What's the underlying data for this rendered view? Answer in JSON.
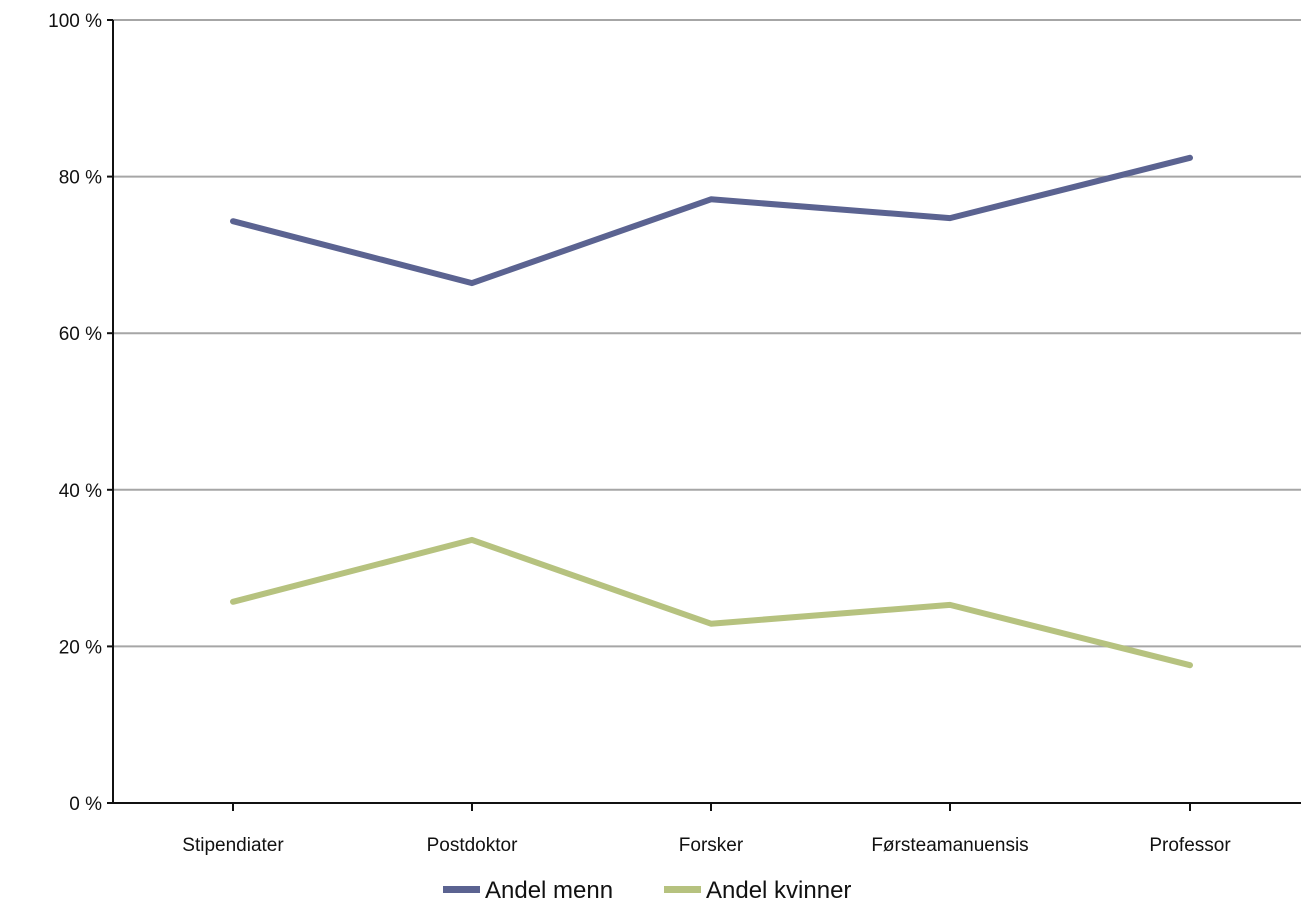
{
  "chart_data": {
    "type": "line",
    "categories": [
      "Stipendiater",
      "Postdoktor",
      "Forsker",
      "Førsteamanuensis",
      "Professor"
    ],
    "series": [
      {
        "name": "Andel menn",
        "values": [
          74.3,
          66.4,
          77.1,
          74.7,
          82.4
        ],
        "color": "#5b6391"
      },
      {
        "name": "Andel kvinner",
        "values": [
          25.7,
          33.6,
          22.9,
          25.3,
          17.6
        ],
        "color": "#b6c27f"
      }
    ],
    "y_ticks": [
      "0 %",
      "20 %",
      "40 %",
      "60 %",
      "80 %",
      "100 %"
    ],
    "ylim": [
      0,
      100
    ],
    "grid": true,
    "legend_position": "bottom-center"
  }
}
